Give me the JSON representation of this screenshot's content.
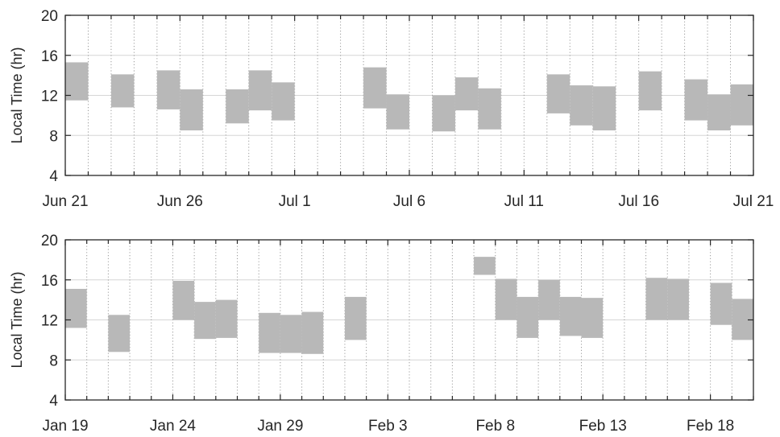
{
  "chart_data": [
    {
      "type": "bar",
      "ylabel": "Local Time (hr)",
      "ylim": [
        4,
        20
      ],
      "yticks": [
        4,
        8,
        12,
        16,
        20
      ],
      "xlim": [
        0,
        30
      ],
      "xtick_positions": [
        0,
        5,
        10,
        15,
        20,
        25,
        30
      ],
      "xtick_labels": [
        "Jun 21",
        "Jun 26",
        "Jul 1",
        "Jul 6",
        "Jul 11",
        "Jul 16",
        "Jul 21"
      ],
      "grid": "horizontal at y ticks; dotted vertical line each day",
      "bars": [
        {
          "day": 0,
          "start": 11.5,
          "end": 15.3
        },
        {
          "day": 2,
          "start": 10.8,
          "end": 14.1
        },
        {
          "day": 4,
          "start": 10.6,
          "end": 14.5
        },
        {
          "day": 5,
          "start": 8.5,
          "end": 12.6
        },
        {
          "day": 7,
          "start": 9.2,
          "end": 12.6
        },
        {
          "day": 8,
          "start": 10.5,
          "end": 14.5
        },
        {
          "day": 9,
          "start": 9.5,
          "end": 13.3
        },
        {
          "day": 13,
          "start": 10.7,
          "end": 14.8
        },
        {
          "day": 14,
          "start": 8.6,
          "end": 12.1
        },
        {
          "day": 16,
          "start": 8.4,
          "end": 12.0
        },
        {
          "day": 17,
          "start": 10.5,
          "end": 13.8
        },
        {
          "day": 18,
          "start": 8.6,
          "end": 12.7
        },
        {
          "day": 21,
          "start": 10.2,
          "end": 14.1
        },
        {
          "day": 22,
          "start": 9.0,
          "end": 13.0
        },
        {
          "day": 23,
          "start": 8.5,
          "end": 12.9
        },
        {
          "day": 25,
          "start": 10.5,
          "end": 14.4
        },
        {
          "day": 27,
          "start": 9.5,
          "end": 13.6
        },
        {
          "day": 28,
          "start": 8.5,
          "end": 12.1
        },
        {
          "day": 29,
          "start": 9.0,
          "end": 13.1
        },
        {
          "day": 30,
          "start": 8.6,
          "end": 12.2
        }
      ]
    },
    {
      "type": "bar",
      "ylabel": "Local Time (hr)",
      "ylim": [
        4,
        20
      ],
      "yticks": [
        4,
        8,
        12,
        16,
        20
      ],
      "xlim": [
        0,
        32
      ],
      "xtick_positions": [
        0,
        5,
        10,
        15,
        20,
        25,
        30
      ],
      "xtick_labels": [
        "Jan 19",
        "Jan 24",
        "Jan 29",
        "Feb 3",
        "Feb 8",
        "Feb 13",
        "Feb 18"
      ],
      "grid": "horizontal at y ticks; dotted vertical line each day",
      "bars": [
        {
          "day": 0,
          "start": 11.2,
          "end": 15.1
        },
        {
          "day": 2,
          "start": 8.8,
          "end": 12.5
        },
        {
          "day": 5,
          "start": 12.0,
          "end": 15.9
        },
        {
          "day": 6,
          "start": 10.1,
          "end": 13.8
        },
        {
          "day": 7,
          "start": 10.2,
          "end": 14.0
        },
        {
          "day": 9,
          "start": 8.7,
          "end": 12.7
        },
        {
          "day": 10,
          "start": 8.7,
          "end": 12.5
        },
        {
          "day": 11,
          "start": 8.6,
          "end": 12.8
        },
        {
          "day": 13,
          "start": 10.0,
          "end": 14.3
        },
        {
          "day": 19,
          "start": 16.5,
          "end": 18.3
        },
        {
          "day": 20,
          "start": 12.0,
          "end": 16.1
        },
        {
          "day": 21,
          "start": 10.2,
          "end": 14.3
        },
        {
          "day": 22,
          "start": 12.0,
          "end": 16.0
        },
        {
          "day": 23,
          "start": 10.4,
          "end": 14.3
        },
        {
          "day": 24,
          "start": 10.2,
          "end": 14.2
        },
        {
          "day": 27,
          "start": 12.0,
          "end": 16.2
        },
        {
          "day": 28,
          "start": 12.0,
          "end": 16.1
        },
        {
          "day": 30,
          "start": 11.5,
          "end": 15.7
        },
        {
          "day": 31,
          "start": 10.0,
          "end": 14.1
        }
      ]
    }
  ]
}
